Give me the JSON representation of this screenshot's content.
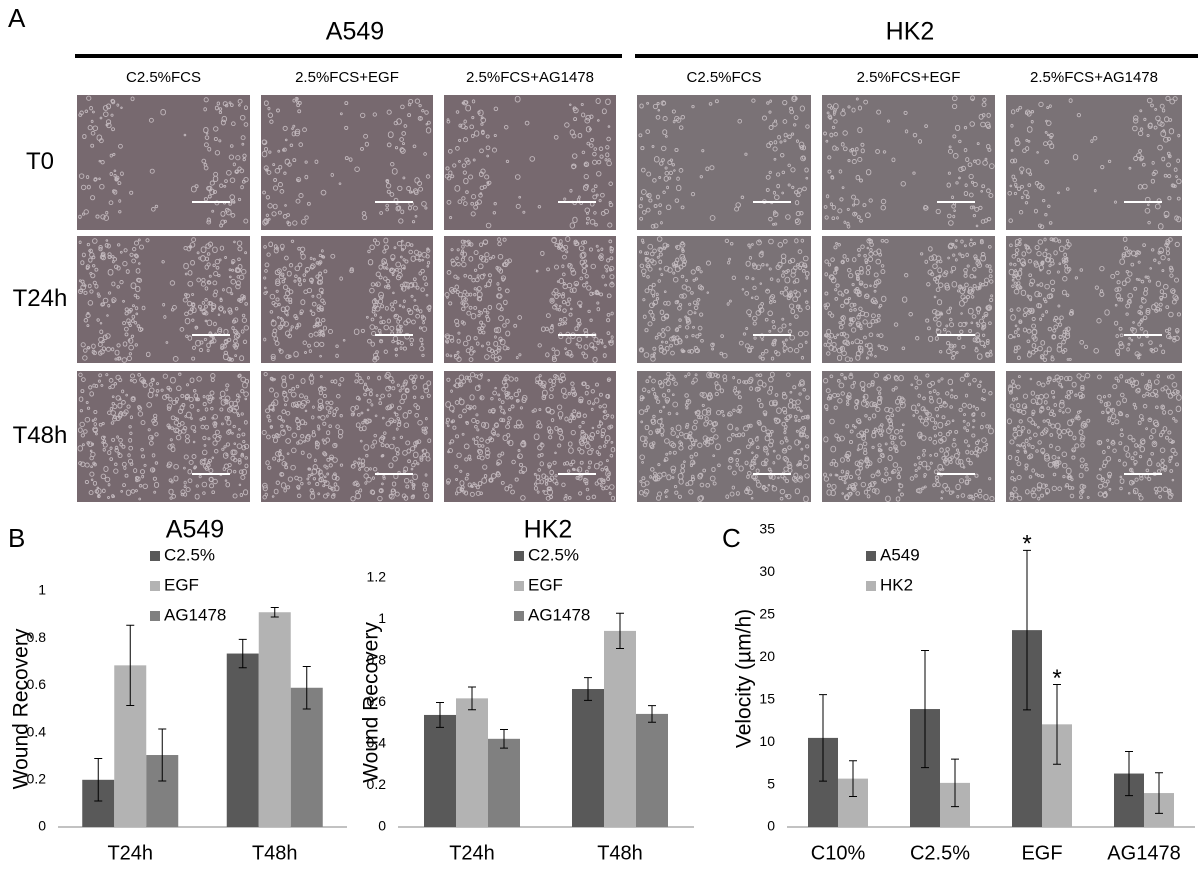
{
  "panel_labels": [
    "A",
    "B",
    "C"
  ],
  "micrographs": {
    "cell_lines": [
      "A549",
      "HK2"
    ],
    "conditions": [
      [
        "C2.5%FCS",
        "2.5%FCS+EGF",
        "2.5%FCS+AG1478"
      ],
      [
        "C2.5%FCS",
        "2.5%FCS+EGF",
        "2.5%FCS+AG1478"
      ]
    ],
    "timepoints": [
      "T0",
      "T24h",
      "T48h"
    ]
  },
  "chart_data": [
    {
      "type": "bar",
      "title": "A549",
      "y_label": "Wound Recovery",
      "categories": [
        "T24h",
        "T48h"
      ],
      "series": [
        {
          "name": "C2.5%",
          "color": "#595959",
          "values": [
            0.2,
            0.735
          ],
          "errors": [
            0.09,
            0.06
          ]
        },
        {
          "name": "EGF",
          "color": "#b3b3b3",
          "values": [
            0.685,
            0.91
          ],
          "errors": [
            0.17,
            0.02
          ]
        },
        {
          "name": "AG1478",
          "color": "#808080",
          "values": [
            0.305,
            0.59
          ],
          "errors": [
            0.11,
            0.09
          ]
        }
      ],
      "ylim": [
        0,
        1
      ],
      "yticks": [
        0,
        0.2,
        0.4,
        0.6,
        0.8,
        1
      ],
      "legend": "top-left"
    },
    {
      "type": "bar",
      "title": "HK2",
      "y_label": "Wound Recovery",
      "categories": [
        "T24h",
        "T48h"
      ],
      "series": [
        {
          "name": "C2.5%",
          "color": "#595959",
          "values": [
            0.54,
            0.665
          ],
          "errors": [
            0.06,
            0.055
          ]
        },
        {
          "name": "EGF",
          "color": "#b3b3b3",
          "values": [
            0.62,
            0.945
          ],
          "errors": [
            0.055,
            0.085
          ]
        },
        {
          "name": "AG1478",
          "color": "#808080",
          "values": [
            0.425,
            0.545
          ],
          "errors": [
            0.045,
            0.04
          ]
        }
      ],
      "ylim": [
        0,
        1.2
      ],
      "yticks": [
        0,
        0.2,
        0.4,
        0.6,
        0.8,
        1,
        1.2
      ],
      "legend": "top-left"
    },
    {
      "type": "bar",
      "y_label": "Velocity (µm/h)",
      "categories": [
        "C10%",
        "C2.5%",
        "EGF",
        "AG1478"
      ],
      "series": [
        {
          "name": "A549",
          "color": "#595959",
          "values": [
            10.5,
            13.9,
            23.2,
            6.3
          ],
          "errors": [
            5.1,
            6.9,
            9.4,
            2.6
          ],
          "markers": [
            null,
            null,
            "*",
            null
          ]
        },
        {
          "name": "HK2",
          "color": "#b3b3b3",
          "values": [
            5.7,
            5.2,
            12.1,
            4.0
          ],
          "errors": [
            2.1,
            2.8,
            4.7,
            2.4
          ],
          "markers": [
            null,
            null,
            "*",
            null
          ]
        }
      ],
      "ylim": [
        0,
        35
      ],
      "yticks": [
        0,
        5,
        10,
        15,
        20,
        25,
        30,
        35
      ],
      "legend": "top-left"
    }
  ]
}
